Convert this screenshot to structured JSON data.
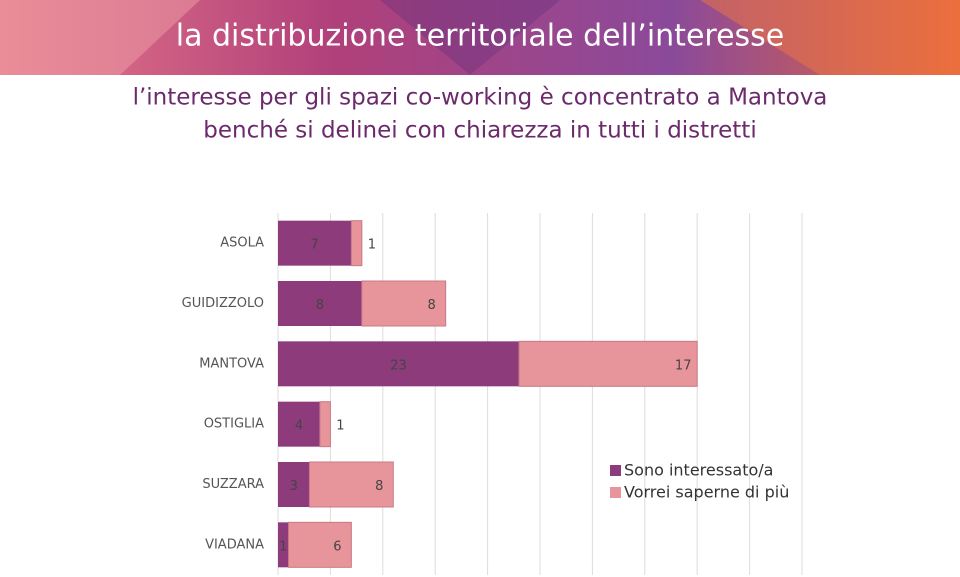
{
  "header": {
    "title": "la distribuzione territoriale dell’interesse",
    "subtitle": [
      "l’interesse per gli spazi co-working è concentrato a Mantova",
      "benché si delinei con chiarezza in tutti i distretti"
    ]
  },
  "chart_data": {
    "type": "stacked-bar-horizontal",
    "categories": [
      "ASOLA",
      "GUIDIZZOLO",
      "MANTOVA",
      "OSTIGLIA",
      "SUZZARA",
      "VIADANA"
    ],
    "series": [
      {
        "name": "Sono interessato/a",
        "color": "#8e3b7c",
        "values": [
          7,
          8,
          23,
          4,
          3,
          1
        ]
      },
      {
        "name": "Vorrei saperne di più",
        "color": "#e8949b",
        "values": [
          1,
          8,
          17,
          1,
          8,
          6
        ]
      }
    ],
    "xlim": [
      0,
      50
    ],
    "xticks": [
      0,
      5,
      10,
      15,
      20,
      25,
      30,
      35,
      40,
      45,
      50
    ],
    "grid": true,
    "legend": "right"
  }
}
